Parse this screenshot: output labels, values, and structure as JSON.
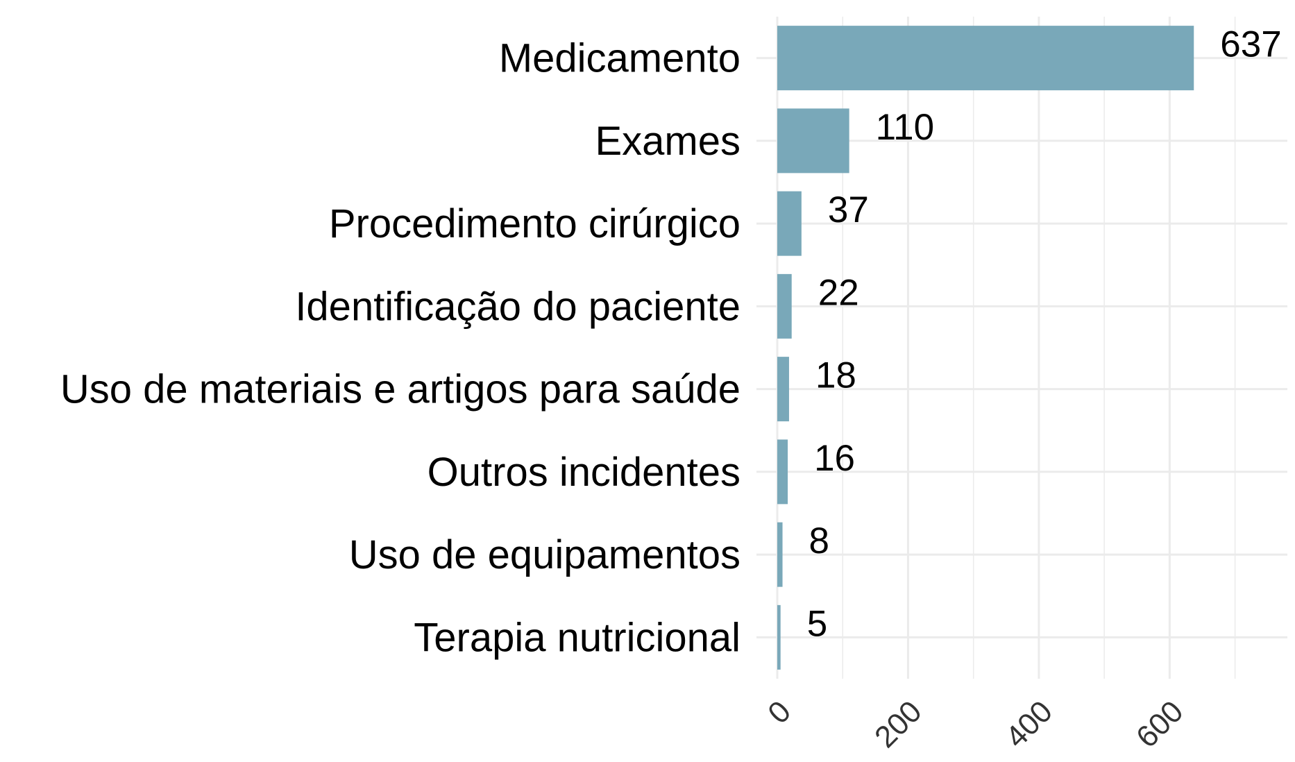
{
  "chart_data": {
    "type": "bar",
    "orientation": "horizontal",
    "title": "",
    "xlabel": "",
    "ylabel": "",
    "categories": [
      "Medicamento",
      "Exames",
      "Procedimento cirúrgico",
      "Identificação do paciente",
      "Uso de materiais e artigos para saúde",
      "Outros incidentes",
      "Uso de equipamentos",
      "Terapia nutricional"
    ],
    "values": [
      637,
      110,
      37,
      22,
      18,
      16,
      8,
      5
    ],
    "data_labels": [
      "637",
      "110",
      "37",
      "22",
      "18",
      "16",
      "8",
      "5"
    ],
    "xlim": [
      0,
      780
    ],
    "x_ticks": [
      0,
      200,
      400,
      600
    ],
    "x_tick_labels": [
      "0",
      "200",
      "400",
      "600"
    ],
    "grid": true,
    "bar_color": "#79a8b9",
    "grid_color": "#ebebeb"
  }
}
